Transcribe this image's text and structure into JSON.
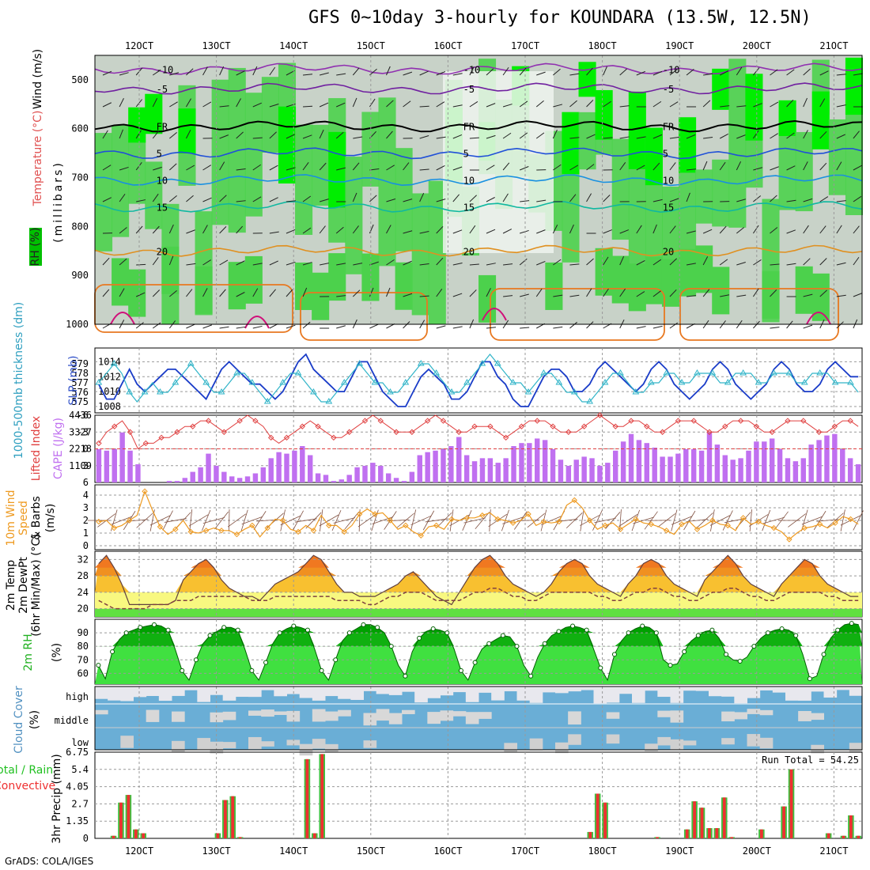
{
  "header": {
    "title": "GFS 0~10day 3-hourly for KOUNDARA (13.5W, 12.5N)",
    "credit": "GrADS: COLA/IGES"
  },
  "colors": {
    "rh_green": "#4cd14c",
    "rh_bright": "#00ee00",
    "rh_gray": "#c8d2c8",
    "slp_line": "#1a3cc8",
    "thick_line": "#30b4c8",
    "li_line": "#e04040",
    "cape_bar": "#c070f0",
    "wind_line": "#ee9a20",
    "temp_orange": "#f07820",
    "dew_line": "#804040",
    "rh2m_green": "#00a000",
    "cloud_blue": "#6aaed6",
    "cloud_gray": "#e8e8ee",
    "precip_green": "#40c040",
    "precip_red": "#ee3030"
  },
  "chart_data": [
    {
      "panel": "upper-air",
      "type": "heatmap",
      "title": "",
      "ylabel": "(millibars)",
      "labels_left": [
        "RH (%)",
        "Temperature (°C)",
        "Wind (m/s)"
      ],
      "x_ticks": [
        "12OCT",
        "13OCT",
        "14OCT",
        "15OCT",
        "16OCT",
        "17OCT",
        "18OCT",
        "19OCT",
        "20OCT",
        "21OCT"
      ],
      "y_ticks": [
        "500",
        "600",
        "700",
        "800",
        "900",
        "1000"
      ],
      "ylim": [
        450,
        1000
      ],
      "temperature_contours": [
        {
          "label": "-10",
          "level_mb": 478
        },
        {
          "label": "-5",
          "level_mb": 518
        },
        {
          "label": "FR",
          "level_mb": 595
        },
        {
          "label": "5",
          "level_mb": 650
        },
        {
          "label": "10",
          "level_mb": 705
        },
        {
          "label": "15",
          "level_mb": 760
        },
        {
          "label": "20",
          "level_mb": 850
        }
      ]
    },
    {
      "panel": "slp-thickness",
      "type": "line",
      "labels_left": [
        "SLP (mb)",
        "1000-500mb thickness (dm)"
      ],
      "y_ticks_left": [
        "575",
        "576",
        "577",
        "578",
        "579"
      ],
      "y_ticks_right": [
        "1008",
        "1010",
        "1012",
        "1014"
      ],
      "series": [
        {
          "name": "SLP (mb)",
          "values": [
            1011,
            1009,
            1009,
            1011,
            1013,
            1011,
            1010,
            1011,
            1012,
            1013,
            1013,
            1012,
            1011,
            1010,
            1009,
            1011,
            1013,
            1014,
            1013,
            1012,
            1011,
            1011,
            1010,
            1009,
            1010,
            1012,
            1014,
            1015,
            1013,
            1012,
            1011,
            1010,
            1010,
            1012,
            1014,
            1014,
            1012,
            1010,
            1009,
            1008,
            1008,
            1010,
            1012,
            1013,
            1012,
            1011,
            1009,
            1009,
            1010,
            1012,
            1014,
            1014,
            1012,
            1011,
            1009,
            1008,
            1008,
            1010,
            1012,
            1013,
            1013,
            1012,
            1010,
            1010,
            1011,
            1013,
            1014,
            1013,
            1012,
            1011,
            1010,
            1011,
            1013,
            1014,
            1013,
            1011,
            1010,
            1009,
            1010,
            1011,
            1013,
            1014,
            1013,
            1011,
            1010,
            1009,
            1010,
            1011,
            1013,
            1014,
            1013,
            1011,
            1010,
            1010,
            1011,
            1013,
            1014,
            1013,
            1012,
            1012
          ]
        },
        {
          "name": "1000-500mb thickness (dm)",
          "values": [
            577,
            578,
            579,
            578,
            576,
            575,
            576,
            577,
            576,
            576,
            577,
            578,
            579,
            578,
            577,
            576,
            576,
            577,
            578,
            578,
            577,
            576,
            575,
            576,
            577,
            578,
            578,
            577,
            576,
            575,
            575,
            576,
            577,
            578,
            579,
            578,
            577,
            577,
            576,
            576,
            577,
            578,
            579,
            579,
            578,
            577,
            576,
            576,
            577,
            578,
            579,
            580,
            579,
            578,
            577,
            577,
            576,
            577,
            578,
            578,
            577,
            576,
            576,
            575,
            575,
            576,
            577,
            578,
            578,
            577,
            576,
            576,
            577,
            577,
            578,
            578,
            577,
            577,
            578,
            578,
            578,
            577,
            577,
            578,
            578,
            578,
            577,
            577,
            578,
            578,
            578,
            577,
            577,
            578,
            578,
            578,
            577,
            577,
            577,
            576
          ]
        }
      ]
    },
    {
      "panel": "li-cape",
      "type": "bar",
      "labels_left": [
        "Lifted Index",
        "CAPE (J/kg)"
      ],
      "y_ticks_left": [
        "-6",
        "-3",
        "0",
        "3",
        "6"
      ],
      "y_ticks_right": [
        "1109",
        "2218",
        "3327",
        "4436"
      ],
      "series": [
        {
          "name": "CAPE (J/kg)",
          "values": [
            2200,
            2100,
            2200,
            3300,
            2100,
            1200,
            0,
            0,
            0,
            100,
            100,
            300,
            700,
            1000,
            1900,
            1100,
            700,
            400,
            300,
            400,
            600,
            1000,
            1600,
            2000,
            1900,
            2100,
            2400,
            1800,
            600,
            500,
            100,
            200,
            500,
            1000,
            1100,
            1300,
            1100,
            600,
            300,
            100,
            700,
            1800,
            2000,
            2100,
            2200,
            2400,
            3000,
            1800,
            1400,
            1600,
            1600,
            1300,
            1600,
            2400,
            2600,
            2600,
            2900,
            2800,
            2200,
            1500,
            1100,
            1500,
            1700,
            1600,
            1100,
            1300,
            2100,
            2700,
            3200,
            2800,
            2600,
            2300,
            1700,
            1700,
            1900,
            2200,
            2200,
            2100,
            3300,
            2500,
            1800,
            1500,
            1600,
            2100,
            2700,
            2700,
            2900,
            2200,
            1600,
            1400,
            1600,
            2500,
            2800,
            3100,
            3200,
            2200,
            1600,
            1200
          ]
        },
        {
          "name": "Lifted Index",
          "values": [
            -1,
            -3,
            -4,
            -5,
            -3,
            0,
            -1,
            -1,
            -2,
            -2,
            -3,
            -4,
            -4,
            -5,
            -5,
            -4,
            -3,
            -4,
            -5,
            -6,
            -5,
            -4,
            -2,
            -1,
            -2,
            -3,
            -4,
            -5,
            -4,
            -3,
            -2,
            -2,
            -3,
            -4,
            -5,
            -6,
            -5,
            -4,
            -3,
            -3,
            -3,
            -4,
            -5,
            -6,
            -5,
            -4,
            -3,
            -3,
            -4,
            -4,
            -4,
            -3,
            -2,
            -3,
            -4,
            -5,
            -5,
            -5,
            -4,
            -3,
            -3,
            -3,
            -4,
            -5,
            -6,
            -5,
            -4,
            -4,
            -5,
            -5,
            -4,
            -3,
            -3,
            -4,
            -5,
            -5,
            -5,
            -4,
            -3,
            -3,
            -4,
            -5,
            -5,
            -5,
            -4,
            -3,
            -3,
            -4,
            -5,
            -5,
            -5,
            -4,
            -3,
            -3,
            -4,
            -5,
            -5,
            -4
          ]
        }
      ]
    },
    {
      "panel": "wind10m",
      "type": "line",
      "labels_left": [
        "10m Wind",
        "Speed",
        "& Barbs",
        "(m/s)"
      ],
      "y_ticks": [
        "0",
        "1",
        "2",
        "3",
        "4"
      ],
      "ylim": [
        0,
        4.5
      ],
      "series": [
        {
          "name": "10m Wind Speed",
          "values": [
            1.9,
            2.0,
            1.4,
            1.6,
            2.0,
            2.4,
            4.3,
            2.8,
            1.5,
            0.9,
            1.3,
            2.0,
            1.1,
            1.0,
            1.2,
            1.4,
            1.2,
            1.2,
            0.9,
            1.3,
            1.6,
            0.7,
            1.4,
            2.1,
            2.0,
            1.3,
            1.1,
            1.6,
            1.2,
            2.4,
            1.6,
            1.6,
            1.1,
            1.6,
            2.5,
            2.9,
            2.5,
            2.6,
            2.0,
            1.3,
            1.6,
            1.1,
            0.8,
            1.5,
            1.6,
            1.3,
            2.1,
            2.0,
            2.2,
            2.2,
            2.4,
            2.6,
            2.1,
            2.0,
            1.8,
            2.0,
            2.5,
            1.6,
            1.9,
            1.8,
            1.9,
            3.2,
            3.6,
            3.0,
            2.0,
            1.3,
            1.6,
            1.8,
            1.3,
            1.7,
            2.1,
            1.8,
            1.7,
            1.5,
            1.2,
            0.9,
            1.7,
            1.9,
            1.3,
            1.6,
            2.0,
            1.7,
            1.6,
            1.2,
            2.2,
            1.7,
            1.9,
            1.6,
            1.4,
            1.1,
            0.5,
            1.0,
            1.4,
            1.5,
            1.7,
            1.4,
            1.8,
            2.3,
            2.1,
            1.7
          ]
        }
      ]
    },
    {
      "panel": "temp2m",
      "type": "area",
      "labels_left": [
        "2m Temp",
        "2m DewPt",
        "(6hr Min/Max) (°C)"
      ],
      "y_ticks": [
        "20",
        "24",
        "28",
        "32"
      ],
      "ylim": [
        18,
        34
      ],
      "series": [
        {
          "name": "2m Temp",
          "values": [
            31,
            33,
            30,
            26,
            21,
            21,
            21,
            21,
            21,
            21,
            22,
            27,
            29,
            31,
            32,
            30,
            27,
            25,
            24,
            23,
            23,
            22,
            24,
            26,
            27,
            28,
            29,
            31,
            33,
            32,
            29,
            26,
            24,
            24,
            23,
            23,
            23,
            24,
            25,
            26,
            28,
            29,
            27,
            25,
            23,
            22,
            21,
            24,
            27,
            30,
            32,
            33,
            31,
            28,
            26,
            25,
            24,
            23,
            24,
            26,
            29,
            31,
            32,
            31,
            28,
            26,
            25,
            24,
            23,
            26,
            28,
            31,
            32,
            31,
            28,
            26,
            25,
            24,
            23,
            27,
            29,
            31,
            33,
            31,
            28,
            26,
            25,
            24,
            23,
            26,
            28,
            30,
            32,
            31,
            28,
            26,
            25,
            24,
            23,
            23
          ]
        },
        {
          "name": "2m DewPt",
          "values": [
            22,
            21,
            20,
            20,
            20,
            20,
            20,
            21,
            21,
            21,
            22,
            22,
            22,
            23,
            23,
            23,
            23,
            23,
            23,
            23,
            22,
            22,
            22,
            23,
            23,
            23,
            23,
            23,
            23,
            23,
            23,
            22,
            22,
            22,
            22,
            21,
            21,
            22,
            23,
            23,
            24,
            24,
            24,
            23,
            22,
            22,
            22,
            22,
            23,
            24,
            24,
            25,
            25,
            24,
            23,
            23,
            22,
            22,
            23,
            24,
            24,
            24,
            24,
            24,
            24,
            23,
            23,
            22,
            22,
            23,
            24,
            24,
            25,
            25,
            24,
            23,
            23,
            22,
            22,
            23,
            24,
            24,
            25,
            25,
            24,
            23,
            23,
            22,
            22,
            23,
            24,
            24,
            24,
            24,
            24,
            23,
            23,
            22,
            22,
            22
          ]
        }
      ]
    },
    {
      "panel": "rh2m",
      "type": "area",
      "labels_left": [
        "2m RH",
        "(%)"
      ],
      "y_ticks": [
        "60",
        "70",
        "80",
        "90"
      ],
      "ylim": [
        52,
        100
      ],
      "series": [
        {
          "name": "2m RH",
          "values": [
            66,
            56,
            76,
            85,
            90,
            92,
            94,
            95,
            96,
            95,
            92,
            78,
            62,
            55,
            70,
            82,
            88,
            91,
            94,
            94,
            92,
            78,
            62,
            55,
            68,
            82,
            90,
            93,
            95,
            94,
            92,
            78,
            62,
            55,
            70,
            84,
            90,
            93,
            96,
            96,
            94,
            90,
            80,
            66,
            58,
            76,
            86,
            91,
            93,
            92,
            90,
            78,
            62,
            55,
            68,
            78,
            82,
            85,
            88,
            87,
            80,
            66,
            58,
            72,
            82,
            88,
            91,
            94,
            95,
            94,
            92,
            78,
            64,
            55,
            74,
            84,
            90,
            93,
            95,
            94,
            90,
            70,
            66,
            67,
            76,
            84,
            88,
            91,
            92,
            86,
            74,
            70,
            69,
            72,
            80,
            86,
            90,
            92,
            93,
            92,
            88,
            74,
            56,
            58,
            74,
            86,
            92,
            96,
            97,
            96
          ]
        }
      ]
    },
    {
      "panel": "cloud-cover",
      "type": "area",
      "labels_left": [
        "Cloud Cover",
        "(%)"
      ],
      "y_ticks": [
        "high",
        "middle",
        "low"
      ]
    },
    {
      "panel": "precip",
      "type": "bar",
      "labels_left": [
        "Total / Rain",
        "Convective",
        "3hr Precip (mm)"
      ],
      "annotation": "Run Total = 54.25",
      "y_ticks": [
        "0",
        "1.35",
        "2.7",
        "4.05",
        "5.4",
        "6.75"
      ],
      "ylim": [
        0,
        6.75
      ],
      "series": [
        {
          "name": "Total",
          "values": [
            0,
            0,
            0.2,
            2.8,
            3.4,
            0.7,
            0.4,
            0,
            0,
            0,
            0,
            0,
            0,
            0,
            0,
            0,
            0.4,
            3.0,
            3.3,
            0.1,
            0,
            0,
            0,
            0,
            0,
            0,
            0,
            0,
            6.2,
            0.4,
            6.6,
            0,
            0,
            0,
            0,
            0,
            0,
            0,
            0,
            0,
            0,
            0,
            0,
            0,
            0,
            0,
            0,
            0,
            0,
            0,
            0,
            0,
            0,
            0,
            0,
            0,
            0,
            0,
            0,
            0,
            0,
            0,
            0,
            0,
            0,
            0,
            0.5,
            3.5,
            2.8,
            0,
            0,
            0,
            0,
            0,
            0,
            0.1,
            0,
            0,
            0,
            0.7,
            2.9,
            2.4,
            0.8,
            0.8,
            3.2,
            0.1,
            0,
            0,
            0,
            0.7,
            0,
            0,
            2.5,
            5.4,
            0,
            0,
            0,
            0,
            0.4,
            0,
            0.2,
            1.8,
            0.2
          ]
        }
      ]
    }
  ]
}
